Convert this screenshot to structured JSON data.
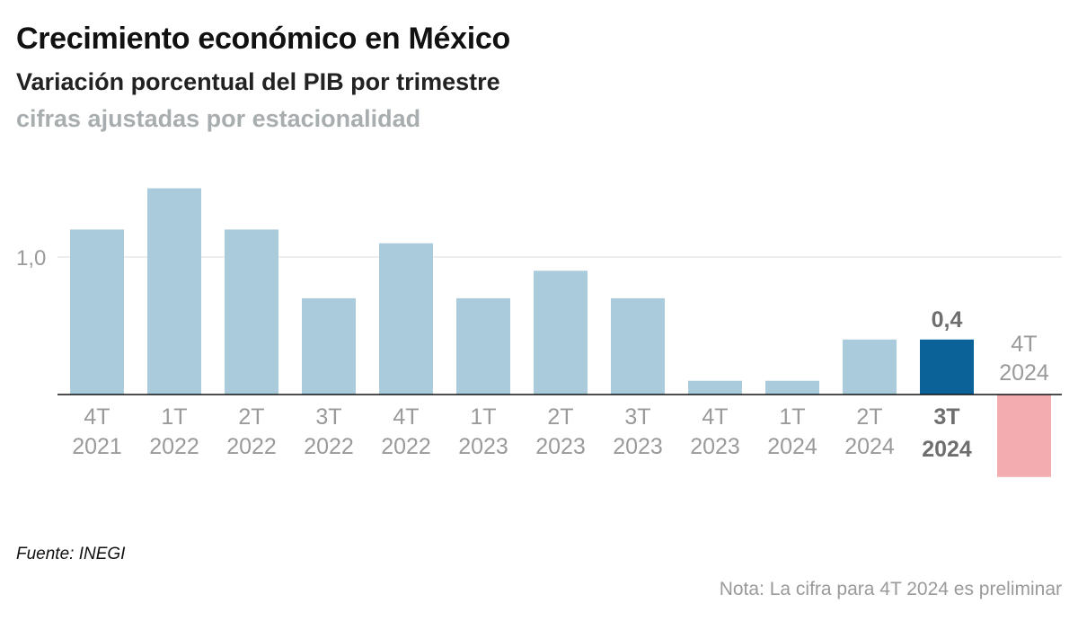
{
  "header": {
    "title": "Crecimiento económico en México",
    "subtitle": "Variación porcentual del PIB por trimestre",
    "subtitle2": "cifras ajustadas por estacionalidad"
  },
  "footer": {
    "source": "Fuente: INEGI",
    "note": "Nota: La cifra para 4T 2024 es preliminar"
  },
  "colors": {
    "bar": "#a9cbdb",
    "highlight": "#0b6299",
    "negative": "#f3adb0",
    "label": "#9a9a9a",
    "highlight_label": "#6e6e6e",
    "grid": "#dddddd",
    "zero_line": "#111111"
  },
  "chart_data": {
    "type": "bar",
    "title": "Crecimiento económico en México",
    "subtitle": "Variación porcentual del PIB por trimestre",
    "xlabel": "",
    "ylabel": "",
    "categories": [
      [
        "4T",
        "2021"
      ],
      [
        "1T",
        "2022"
      ],
      [
        "2T",
        "2022"
      ],
      [
        "3T",
        "2022"
      ],
      [
        "4T",
        "2022"
      ],
      [
        "1T",
        "2023"
      ],
      [
        "2T",
        "2023"
      ],
      [
        "3T",
        "2023"
      ],
      [
        "4T",
        "2023"
      ],
      [
        "1T",
        "2024"
      ],
      [
        "2T",
        "2024"
      ],
      [
        "3T",
        "2024"
      ],
      [
        "4T",
        "2024"
      ]
    ],
    "values": [
      1.2,
      1.5,
      1.2,
      0.7,
      1.1,
      0.7,
      0.9,
      0.7,
      0.1,
      0.1,
      0.4,
      0.4,
      -0.6
    ],
    "highlight_index": 11,
    "highlight_value_label": "0,4",
    "ylim": [
      -0.6,
      1.5
    ],
    "yticks": [
      {
        "value": 1.0,
        "label": "1,0"
      }
    ],
    "grid": true,
    "legend": "none"
  }
}
